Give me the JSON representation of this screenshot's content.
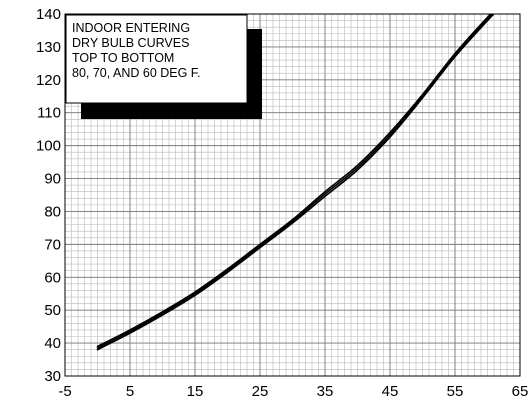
{
  "chart_data": {
    "type": "line",
    "title": "",
    "xlabel": "",
    "ylabel": "",
    "xlim": [
      -5,
      65
    ],
    "ylim": [
      30,
      140
    ],
    "x_ticks": [
      -5,
      5,
      15,
      25,
      35,
      45,
      55,
      65
    ],
    "y_ticks": [
      30,
      40,
      50,
      60,
      70,
      80,
      90,
      100,
      110,
      120,
      130,
      140
    ],
    "grid": true,
    "minor_grid": true,
    "series": [
      {
        "x": [
          0,
          5,
          10,
          15,
          20,
          25,
          30,
          35,
          40,
          45,
          50,
          55,
          60,
          62
        ],
        "y": [
          39,
          44,
          49.5,
          55.5,
          62.5,
          70,
          77.5,
          86,
          94,
          104,
          115.5,
          128,
          139,
          143
        ]
      },
      {
        "x": [
          0,
          5,
          10,
          15,
          20,
          25,
          30,
          35,
          40,
          45,
          50,
          55,
          60,
          62
        ],
        "y": [
          38.5,
          43.5,
          49,
          55,
          62,
          69.5,
          77,
          85.3,
          93.3,
          103.3,
          115,
          127.5,
          138.5,
          142.5
        ]
      },
      {
        "x": [
          0,
          5,
          10,
          15,
          20,
          25,
          30,
          35,
          40,
          45,
          50,
          55,
          60,
          62
        ],
        "y": [
          38,
          43,
          48.5,
          54.5,
          61.5,
          69,
          76.5,
          84.6,
          92.6,
          102.6,
          114.5,
          127,
          138,
          142
        ]
      }
    ],
    "annotation": {
      "lines": [
        "INDOOR ENTERING",
        "DRY BULB CURVES",
        "TOP TO BOTTOM",
        "80, 70, AND 60 DEG F."
      ],
      "placement": "top-left"
    }
  }
}
